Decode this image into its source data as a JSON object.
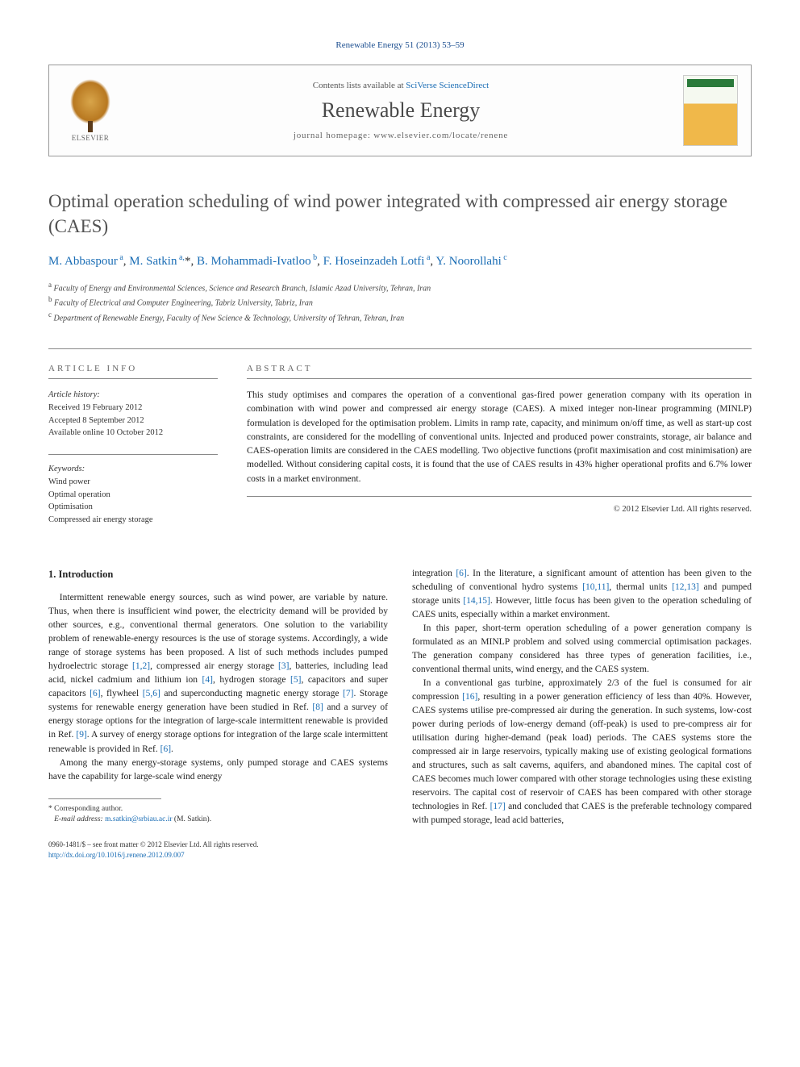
{
  "journal_ref": "Renewable Energy 51 (2013) 53–59",
  "header": {
    "contents_prefix": "Contents lists available at ",
    "contents_link": "SciVerse ScienceDirect",
    "journal_title": "Renewable Energy",
    "homepage_prefix": "journal homepage: ",
    "homepage_url": "www.elsevier.com/locate/renene",
    "elsevier_label": "ELSEVIER"
  },
  "article": {
    "title": "Optimal operation scheduling of wind power integrated with compressed air energy storage (CAES)",
    "authors_html": "M. Abbaspour <sup>a</sup>, M. Satkin <sup>a,</sup>*, B. Mohammadi-Ivatloo <sup>b</sup>, F. Hoseinzadeh Lotfi <sup>a</sup>, Y. Noorollahi <sup>c</sup>",
    "affiliations": [
      {
        "sup": "a",
        "text": "Faculty of Energy and Environmental Sciences, Science and Research Branch, Islamic Azad University, Tehran, Iran"
      },
      {
        "sup": "b",
        "text": "Faculty of Electrical and Computer Engineering, Tabriz University, Tabriz, Iran"
      },
      {
        "sup": "c",
        "text": "Department of Renewable Energy, Faculty of New Science & Technology, University of Tehran, Tehran, Iran"
      }
    ]
  },
  "info": {
    "label": "ARTICLE INFO",
    "history_label": "Article history:",
    "received": "Received 19 February 2012",
    "accepted": "Accepted 8 September 2012",
    "online": "Available online 10 October 2012",
    "keywords_label": "Keywords:",
    "keywords": [
      "Wind power",
      "Optimal operation",
      "Optimisation",
      "Compressed air energy storage"
    ]
  },
  "abstract": {
    "label": "ABSTRACT",
    "text": "This study optimises and compares the operation of a conventional gas-fired power generation company with its operation in combination with wind power and compressed air energy storage (CAES). A mixed integer non-linear programming (MINLP) formulation is developed for the optimisation problem. Limits in ramp rate, capacity, and minimum on/off time, as well as start-up cost constraints, are considered for the modelling of conventional units. Injected and produced power constraints, storage, air balance and CAES-operation limits are considered in the CAES modelling. Two objective functions (profit maximisation and cost minimisation) are modelled. Without considering capital costs, it is found that the use of CAES results in 43% higher operational profits and 6.7% lower costs in a market environment.",
    "copyright": "© 2012 Elsevier Ltd. All rights reserved."
  },
  "body": {
    "section_heading": "1. Introduction",
    "col1_p1": "Intermittent renewable energy sources, such as wind power, are variable by nature. Thus, when there is insufficient wind power, the electricity demand will be provided by other sources, e.g., conventional thermal generators. One solution to the variability problem of renewable-energy resources is the use of storage systems. Accordingly, a wide range of storage systems has been proposed. A list of such methods includes pumped hydroelectric storage [1,2], compressed air energy storage [3], batteries, including lead acid, nickel cadmium and lithium ion [4], hydrogen storage [5], capacitors and super capacitors [6], flywheel [5,6] and superconducting magnetic energy storage [7]. Storage systems for renewable energy generation have been studied in Ref. [8] and a survey of energy storage options for the integration of large-scale intermittent renewable is provided in Ref. [9]. A survey of energy storage options for integration of the large scale intermittent renewable is provided in Ref. [6].",
    "col1_p2": "Among the many energy-storage systems, only pumped storage and CAES systems have the capability for large-scale wind energy",
    "col2_p1": "integration [6]. In the literature, a significant amount of attention has been given to the scheduling of conventional hydro systems [10,11], thermal units [12,13] and pumped storage units [14,15]. However, little focus has been given to the operation scheduling of CAES units, especially within a market environment.",
    "col2_p2": "In this paper, short-term operation scheduling of a power generation company is formulated as an MINLP problem and solved using commercial optimisation packages. The generation company considered has three types of generation facilities, i.e., conventional thermal units, wind energy, and the CAES system.",
    "col2_p3": "In a conventional gas turbine, approximately 2/3 of the fuel is consumed for air compression [16], resulting in a power generation efficiency of less than 40%. However, CAES systems utilise pre-compressed air during the generation. In such systems, low-cost power during periods of low-energy demand (off-peak) is used to pre-compress air for utilisation during higher-demand (peak load) periods. The CAES systems store the compressed air in large reservoirs, typically making use of existing geological formations and structures, such as salt caverns, aquifers, and abandoned mines. The capital cost of CAES becomes much lower compared with other storage technologies using these existing reservoirs. The capital cost of reservoir of CAES has been compared with other storage technologies in Ref. [17] and concluded that CAES is the preferable technology compared with pumped storage, lead acid batteries,"
  },
  "footnote": {
    "corr": "* Corresponding author.",
    "email_label": "E-mail address:",
    "email": "m.satkin@srbiau.ac.ir",
    "email_name": "(M. Satkin)."
  },
  "footer": {
    "issn_line": "0960-1481/$ – see front matter © 2012 Elsevier Ltd. All rights reserved.",
    "doi": "http://dx.doi.org/10.1016/j.renene.2012.09.007"
  },
  "refs": {
    "r1": "[1,2]",
    "r3": "[3]",
    "r4": "[4]",
    "r5": "[5]",
    "r6": "[6]",
    "r56": "[5,6]",
    "r7": "[7]",
    "r8": "[8]",
    "r9": "[9]",
    "r1011": "[10,11]",
    "r1213": "[12,13]",
    "r1415": "[14,15]",
    "r16": "[16]",
    "r17": "[17]"
  }
}
